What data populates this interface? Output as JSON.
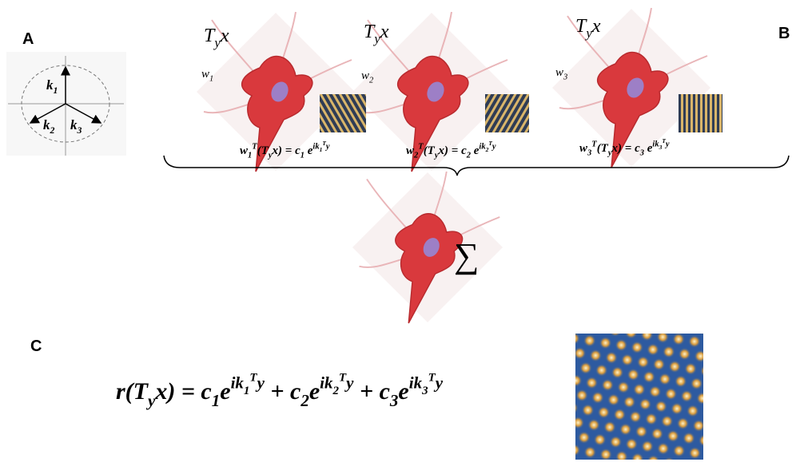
{
  "panels": {
    "a": "A",
    "b": "B",
    "c": "C"
  },
  "vectors": [
    [
      {
        "t": "k",
        "s": "n"
      },
      {
        "t": "1",
        "s": "sub"
      }
    ],
    [
      {
        "t": "k",
        "s": "n"
      },
      {
        "t": "2",
        "s": "sub"
      }
    ],
    [
      {
        "t": "k",
        "s": "n"
      },
      {
        "t": "3",
        "s": "sub"
      }
    ]
  ],
  "neurons": [
    {
      "input": [
        {
          "t": "T",
          "s": "n"
        },
        {
          "t": "y",
          "s": "sub"
        },
        {
          "t": "x",
          "s": "n"
        }
      ],
      "weight": [
        {
          "t": "w",
          "s": "n"
        },
        {
          "t": "1",
          "s": "sub"
        }
      ],
      "equation": [
        {
          "t": "w",
          "s": "n"
        },
        {
          "t": "1",
          "s": "sub"
        },
        {
          "t": "T",
          "s": "sup"
        },
        {
          "t": "(T",
          "s": "n"
        },
        {
          "t": "y",
          "s": "sub"
        },
        {
          "t": "x) = c",
          "s": "n"
        },
        {
          "t": "1",
          "s": "sub"
        },
        {
          "t": " e",
          "s": "n"
        },
        {
          "t": "ik",
          "s": "sup"
        },
        {
          "t": "1",
          "s": "supsub"
        },
        {
          "t": "T",
          "s": "supsup"
        },
        {
          "t": "y",
          "s": "sup"
        }
      ]
    },
    {
      "input": [
        {
          "t": "T",
          "s": "n"
        },
        {
          "t": "y",
          "s": "sub"
        },
        {
          "t": "x",
          "s": "n"
        }
      ],
      "weight": [
        {
          "t": "w",
          "s": "n"
        },
        {
          "t": "2",
          "s": "sub"
        }
      ],
      "equation": [
        {
          "t": "w",
          "s": "n"
        },
        {
          "t": "2",
          "s": "sub"
        },
        {
          "t": "T",
          "s": "sup"
        },
        {
          "t": "(T",
          "s": "n"
        },
        {
          "t": "y",
          "s": "sub"
        },
        {
          "t": "x) = c",
          "s": "n"
        },
        {
          "t": "2",
          "s": "sub"
        },
        {
          "t": " e",
          "s": "n"
        },
        {
          "t": "ik",
          "s": "sup"
        },
        {
          "t": "2",
          "s": "supsub"
        },
        {
          "t": "T",
          "s": "supsup"
        },
        {
          "t": "y",
          "s": "sup"
        }
      ]
    },
    {
      "input": [
        {
          "t": "T",
          "s": "n"
        },
        {
          "t": "y",
          "s": "sub"
        },
        {
          "t": "x",
          "s": "n"
        }
      ],
      "weight": [
        {
          "t": "w",
          "s": "n"
        },
        {
          "t": "3",
          "s": "sub"
        }
      ],
      "equation": [
        {
          "t": "w",
          "s": "n"
        },
        {
          "t": "3",
          "s": "sub"
        },
        {
          "t": "T",
          "s": "sup"
        },
        {
          "t": "(T",
          "s": "n"
        },
        {
          "t": "y",
          "s": "sub"
        },
        {
          "t": "x) = c",
          "s": "n"
        },
        {
          "t": "3",
          "s": "sub"
        },
        {
          "t": " e",
          "s": "n"
        },
        {
          "t": "ik",
          "s": "sup"
        },
        {
          "t": "3",
          "s": "supsub"
        },
        {
          "t": "T",
          "s": "supsup"
        },
        {
          "t": "y",
          "s": "sup"
        }
      ]
    }
  ],
  "sum_symbol": "∑",
  "response": [
    {
      "t": "r(T",
      "s": "n"
    },
    {
      "t": "y",
      "s": "sub"
    },
    {
      "t": "x) = c",
      "s": "n"
    },
    {
      "t": "1",
      "s": "sub"
    },
    {
      "t": "e",
      "s": "n"
    },
    {
      "t": "ik",
      "s": "sup"
    },
    {
      "t": "1",
      "s": "supsub"
    },
    {
      "t": "T",
      "s": "supsup"
    },
    {
      "t": "y",
      "s": "sup"
    },
    {
      "t": " + c",
      "s": "n"
    },
    {
      "t": "2",
      "s": "sub"
    },
    {
      "t": "e",
      "s": "n"
    },
    {
      "t": "ik",
      "s": "sup"
    },
    {
      "t": "2",
      "s": "supsub"
    },
    {
      "t": "T",
      "s": "supsup"
    },
    {
      "t": "y",
      "s": "sup"
    },
    {
      "t": " +  c",
      "s": "n"
    },
    {
      "t": "3",
      "s": "sub"
    },
    {
      "t": "e",
      "s": "n"
    },
    {
      "t": "ik",
      "s": "sup"
    },
    {
      "t": "3",
      "s": "supsub"
    },
    {
      "t": "T",
      "s": "supsup"
    },
    {
      "t": "y",
      "s": "sup"
    }
  ]
}
